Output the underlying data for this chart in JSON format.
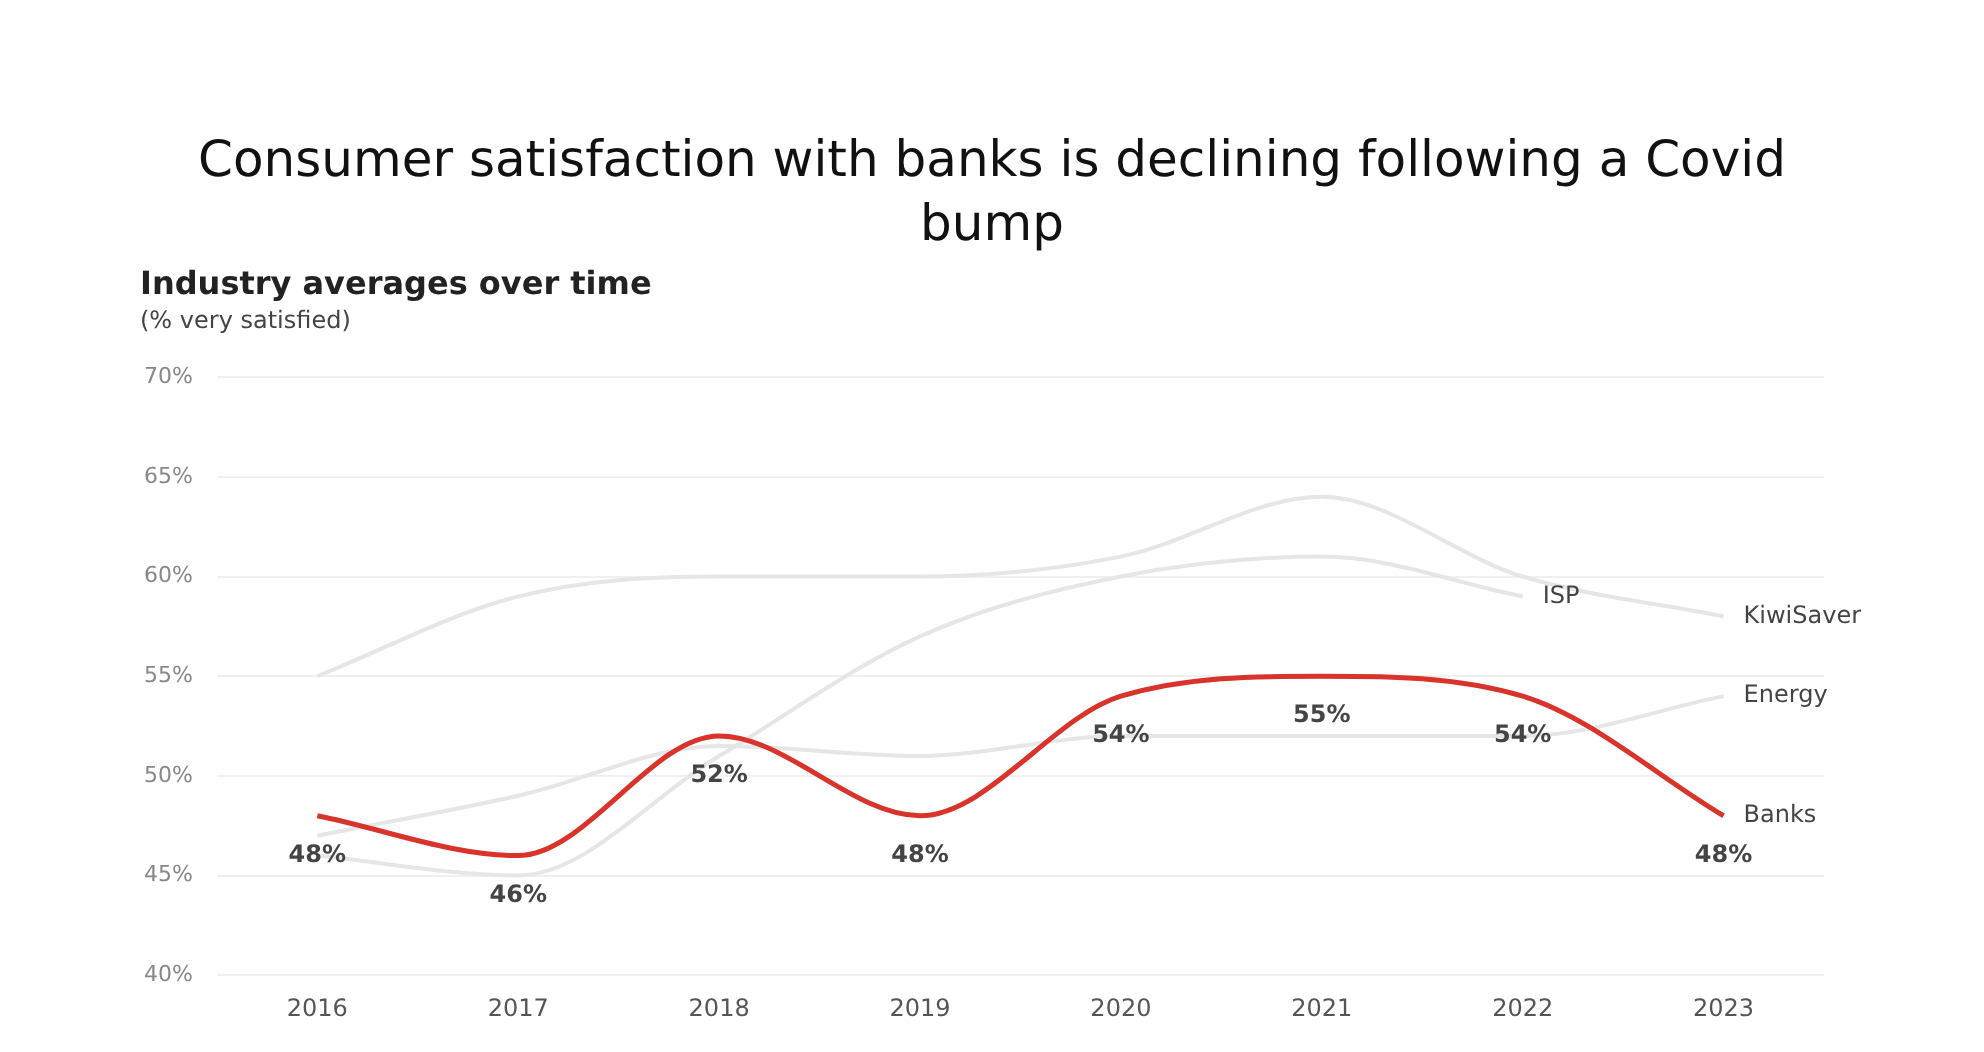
{
  "chart_data": {
    "type": "line",
    "title": "Consumer satisfaction with banks is declining following a Covid bump",
    "subtitle": "Industry averages over time",
    "ylabel": "(% very satisfied)",
    "categories": [
      "2016",
      "2017",
      "2018",
      "2019",
      "2020",
      "2021",
      "2022",
      "2023"
    ],
    "series": [
      {
        "name": "KiwiSaver",
        "color": "#e6e6e6",
        "values": [
          55,
          59,
          60,
          60,
          61,
          64,
          60,
          58
        ]
      },
      {
        "name": "ISP",
        "color": "#e6e6e6",
        "values": [
          46,
          45,
          51,
          57,
          60,
          61,
          59,
          null
        ]
      },
      {
        "name": "Energy",
        "color": "#e6e6e6",
        "values": [
          47,
          49,
          51.5,
          51,
          52,
          52,
          52,
          54
        ]
      },
      {
        "name": "Banks",
        "color": "#d9342b",
        "values": [
          48,
          46,
          52,
          48,
          54,
          55,
          54,
          48
        ],
        "value_labels": [
          "48%",
          "46%",
          "52%",
          "48%",
          "54%",
          "55%",
          "54%",
          "48%"
        ]
      }
    ],
    "ylim": [
      40,
      70
    ],
    "yticks": [
      {
        "value": 40,
        "label": "40%"
      },
      {
        "value": 45,
        "label": "45%"
      },
      {
        "value": 50,
        "label": "50%"
      },
      {
        "value": 55,
        "label": "55%"
      },
      {
        "value": 60,
        "label": "60%"
      },
      {
        "value": 65,
        "label": "65%"
      },
      {
        "value": 70,
        "label": "70%"
      }
    ],
    "grid": "y",
    "legend": false,
    "marker": "none",
    "line_style": "solid"
  }
}
